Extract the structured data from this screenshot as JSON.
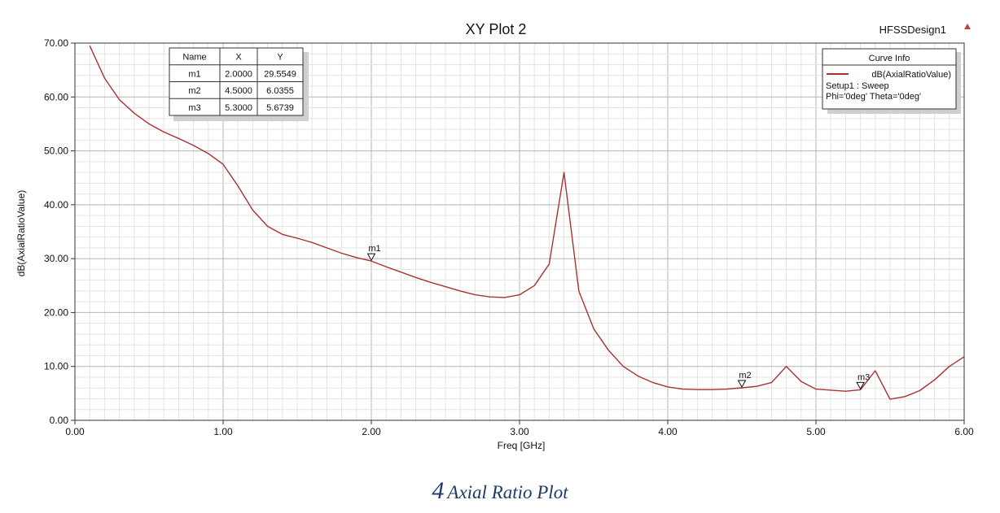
{
  "chart_data": {
    "type": "line",
    "title": "XY Plot 2",
    "design_name": "HFSSDesign1",
    "xlabel": "Freq [GHz]",
    "ylabel": "dB(AxialRatioValue)",
    "xlim": [
      0,
      6
    ],
    "ylim": [
      0,
      70
    ],
    "x_ticks": [
      "0.00",
      "1.00",
      "2.00",
      "3.00",
      "4.00",
      "5.00",
      "6.00"
    ],
    "y_ticks": [
      "0.00",
      "10.00",
      "20.00",
      "30.00",
      "40.00",
      "50.00",
      "60.00",
      "70.00"
    ],
    "grid": true,
    "legend": {
      "title": "Curve Info",
      "placement": "top-right",
      "entry": "dB(AxialRatioValue)",
      "lines": [
        "Setup1 : Sweep",
        "Phi='0deg' Theta='0deg'"
      ]
    },
    "series": [
      {
        "name": "dB(AxialRatioValue)",
        "color": "#a83232",
        "x": [
          0.1,
          0.2,
          0.3,
          0.4,
          0.5,
          0.6,
          0.7,
          0.8,
          0.9,
          1.0,
          1.1,
          1.2,
          1.3,
          1.4,
          1.5,
          1.6,
          1.7,
          1.8,
          1.9,
          2.0,
          2.1,
          2.2,
          2.3,
          2.4,
          2.5,
          2.6,
          2.7,
          2.8,
          2.9,
          3.0,
          3.1,
          3.2,
          3.3,
          3.4,
          3.5,
          3.6,
          3.7,
          3.8,
          3.9,
          4.0,
          4.1,
          4.2,
          4.3,
          4.4,
          4.5,
          4.6,
          4.7,
          4.8,
          4.9,
          5.0,
          5.1,
          5.2,
          5.3,
          5.4,
          5.5,
          5.6,
          5.7,
          5.8,
          5.9,
          6.0
        ],
        "y": [
          69.5,
          63.5,
          59.5,
          57.0,
          55.0,
          53.5,
          52.3,
          51.0,
          49.5,
          47.5,
          43.5,
          39.0,
          36.0,
          34.5,
          33.8,
          33.0,
          32.0,
          31.0,
          30.2,
          29.55,
          28.5,
          27.5,
          26.5,
          25.6,
          24.8,
          24.0,
          23.3,
          22.9,
          22.8,
          23.3,
          25.0,
          29.0,
          46.0,
          24.0,
          17.0,
          13.0,
          10.0,
          8.2,
          7.0,
          6.2,
          5.8,
          5.7,
          5.7,
          5.8,
          6.04,
          6.3,
          7.0,
          10.0,
          7.2,
          5.8,
          5.6,
          5.4,
          5.67,
          9.2,
          3.9,
          4.4,
          5.5,
          7.5,
          10.0,
          11.8
        ]
      }
    ],
    "markers": [
      {
        "name": "m1",
        "x": 2.0,
        "y": 29.5549,
        "x_text": "2.0000",
        "y_text": "29.5549"
      },
      {
        "name": "m2",
        "x": 4.5,
        "y": 6.0355,
        "x_text": "4.5000",
        "y_text": "6.0355"
      },
      {
        "name": "m3",
        "x": 5.3,
        "y": 5.6739,
        "x_text": "5.3000",
        "y_text": "5.6739"
      }
    ],
    "marker_table_headers": [
      "Name",
      "X",
      "Y"
    ]
  },
  "caption": {
    "number": "4",
    "text": "Axial Ratio Plot"
  }
}
